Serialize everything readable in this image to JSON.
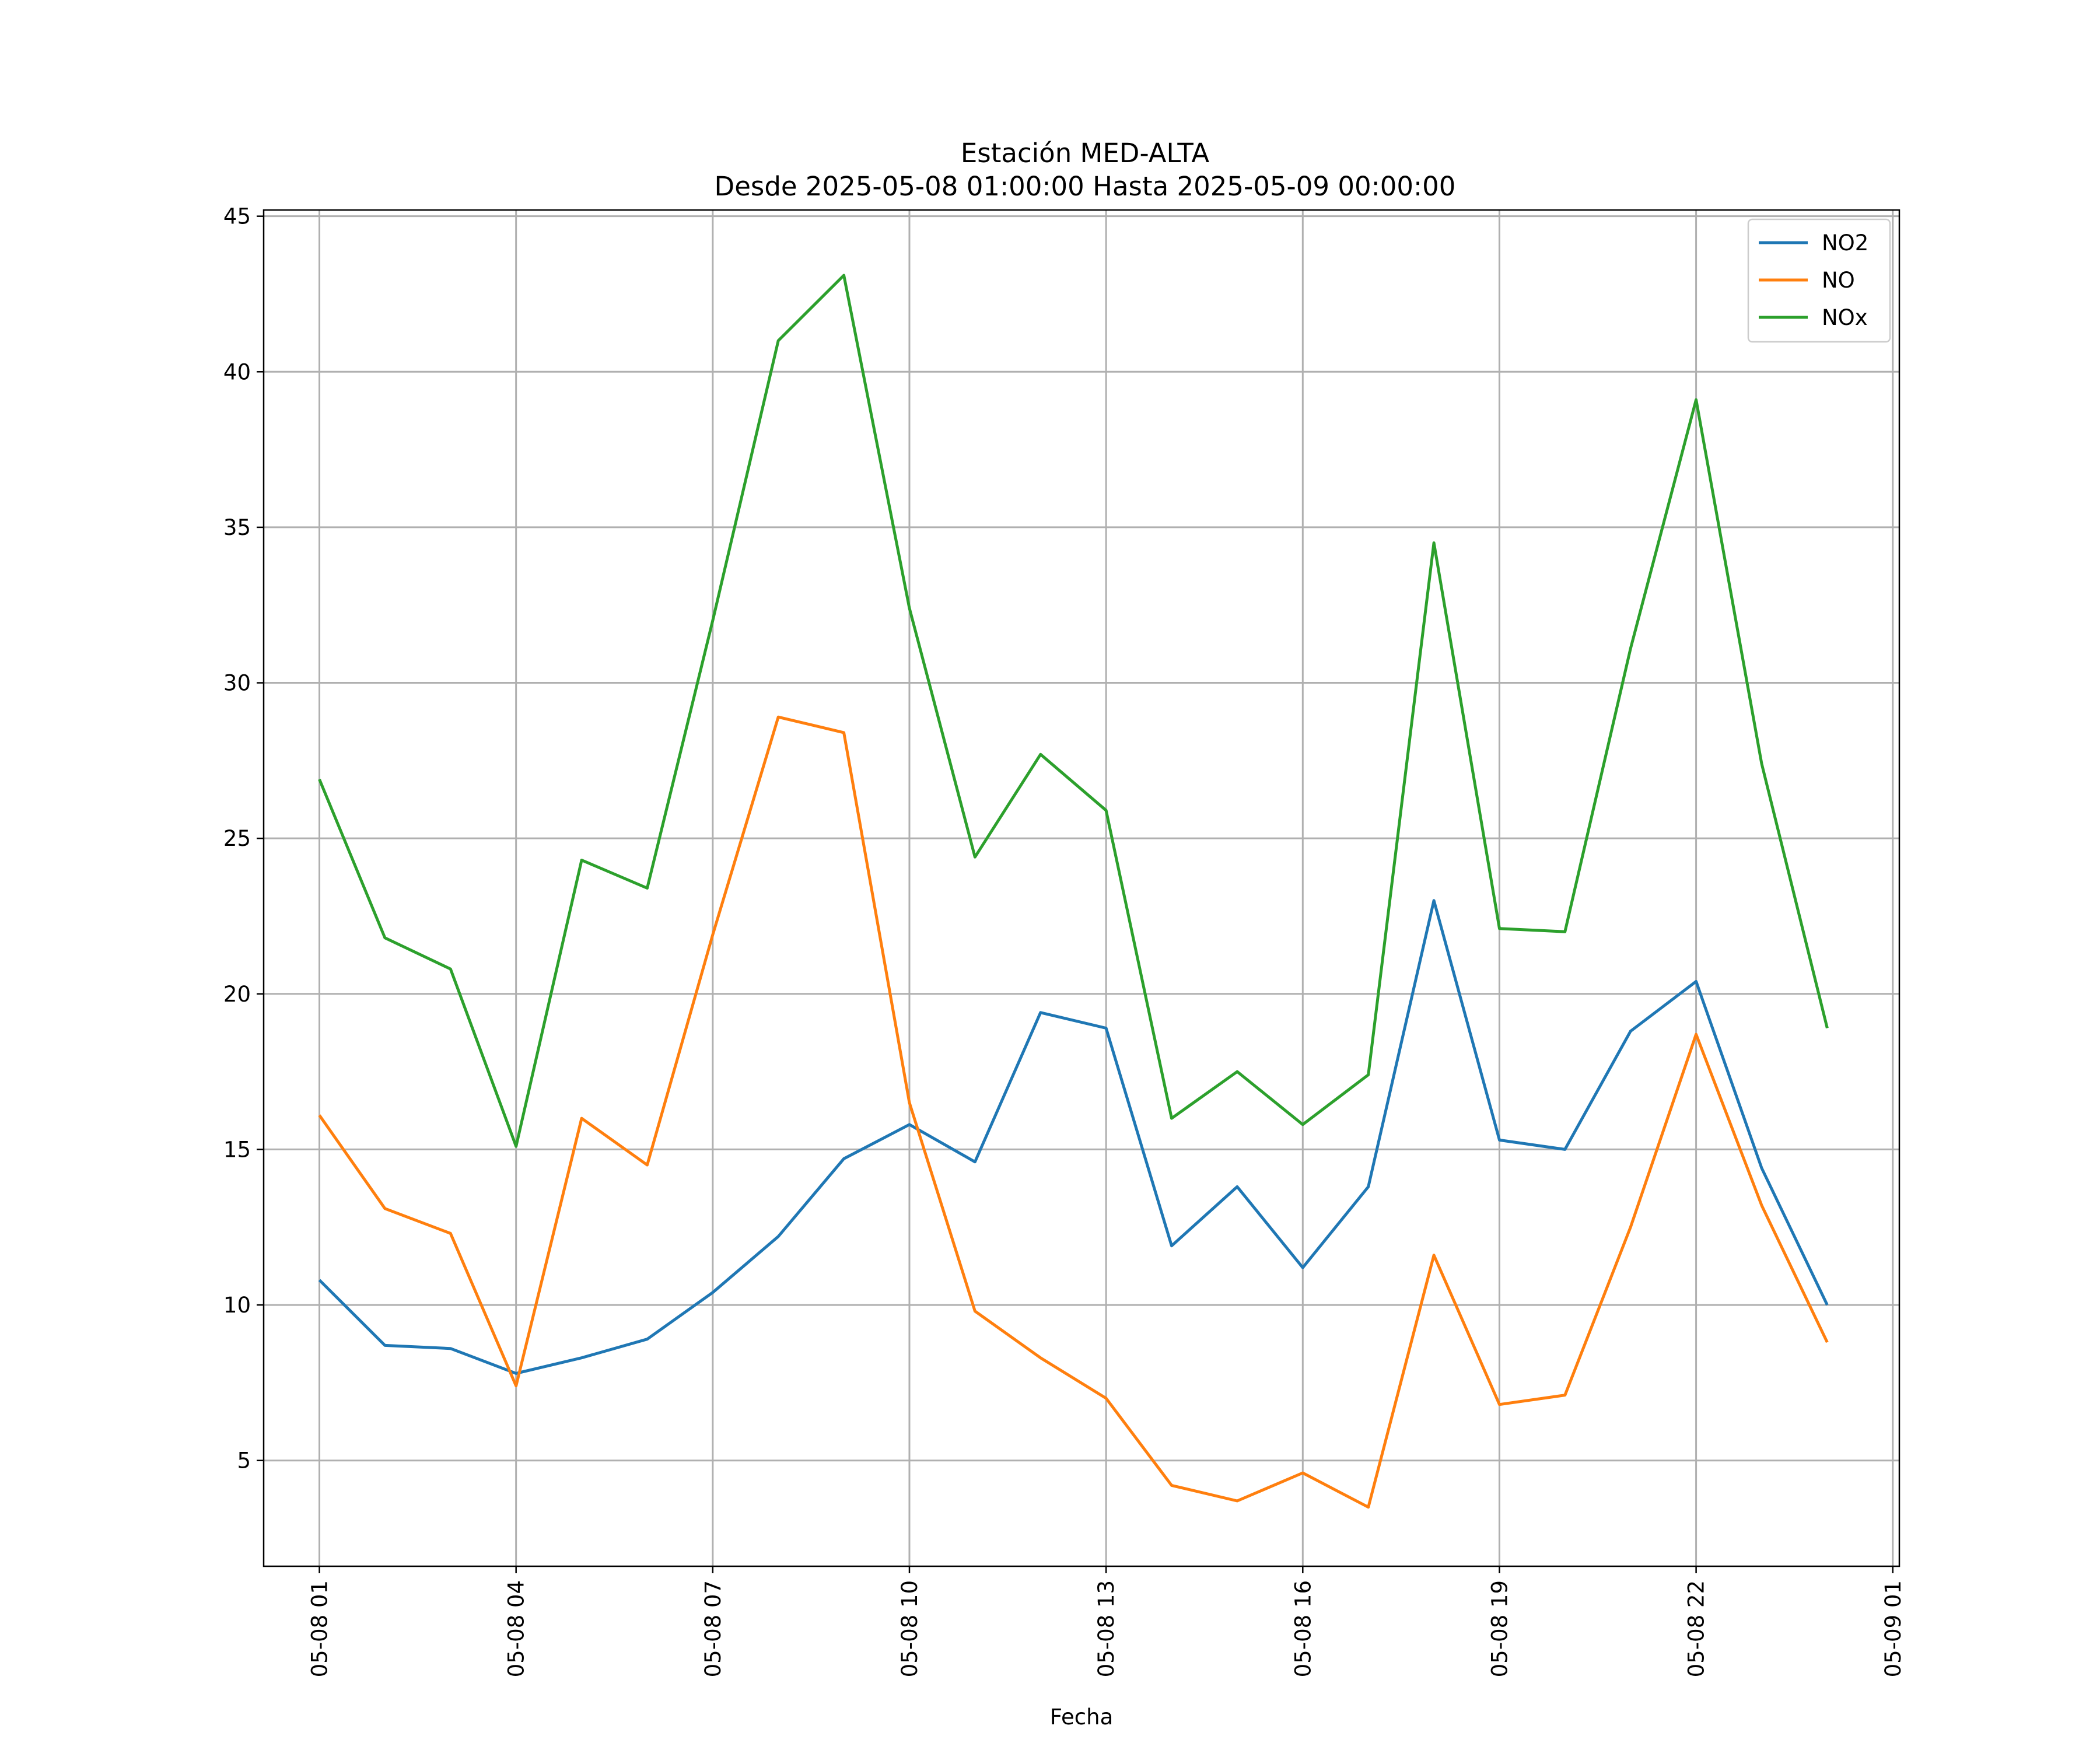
{
  "chart_data": {
    "type": "line",
    "title": "Estación MED-ALTA",
    "subtitle": "Desde 2025-05-08 01:00:00 Hasta 2025-05-09 00:00:00",
    "xlabel": "Fecha",
    "ylabel": "",
    "x": [
      "2025-05-08 01:00",
      "2025-05-08 02:00",
      "2025-05-08 03:00",
      "2025-05-08 04:00",
      "2025-05-08 05:00",
      "2025-05-08 06:00",
      "2025-05-08 07:00",
      "2025-05-08 08:00",
      "2025-05-08 09:00",
      "2025-05-08 10:00",
      "2025-05-08 11:00",
      "2025-05-08 12:00",
      "2025-05-08 13:00",
      "2025-05-08 14:00",
      "2025-05-08 15:00",
      "2025-05-08 16:00",
      "2025-05-08 17:00",
      "2025-05-08 18:00",
      "2025-05-08 19:00",
      "2025-05-08 20:00",
      "2025-05-08 21:00",
      "2025-05-08 22:00",
      "2025-05-08 23:00",
      "2025-05-09 00:00"
    ],
    "x_ticks": [
      {
        "x": "2025-05-08 01:00",
        "label": "05-08 01"
      },
      {
        "x": "2025-05-08 04:00",
        "label": "05-08 04"
      },
      {
        "x": "2025-05-08 07:00",
        "label": "05-08 07"
      },
      {
        "x": "2025-05-08 10:00",
        "label": "05-08 10"
      },
      {
        "x": "2025-05-08 13:00",
        "label": "05-08 13"
      },
      {
        "x": "2025-05-08 16:00",
        "label": "05-08 16"
      },
      {
        "x": "2025-05-08 19:00",
        "label": "05-08 19"
      },
      {
        "x": "2025-05-08 22:00",
        "label": "05-08 22"
      },
      {
        "x": "2025-05-09 01:00",
        "label": "05-09 01"
      }
    ],
    "xlim": [
      "2025-05-08 00:09",
      "2025-05-09 01:06"
    ],
    "y_ticks": [
      5,
      10,
      15,
      20,
      25,
      30,
      35,
      40,
      45
    ],
    "ylim": [
      1.6,
      45.2
    ],
    "grid": true,
    "legend_position": "top-right",
    "series": [
      {
        "name": "NO2",
        "color": "#1f77b4",
        "values": [
          10.8,
          8.7,
          8.6,
          7.8,
          8.3,
          8.9,
          10.4,
          12.2,
          14.7,
          15.8,
          14.6,
          19.4,
          18.9,
          11.9,
          13.8,
          11.2,
          13.8,
          23.0,
          15.3,
          15.0,
          18.8,
          20.4,
          14.4,
          10.0
        ]
      },
      {
        "name": "NO",
        "color": "#ff7f0e",
        "values": [
          16.1,
          13.1,
          12.3,
          7.4,
          16.0,
          14.5,
          21.9,
          28.9,
          28.4,
          16.5,
          9.8,
          8.3,
          7.0,
          4.2,
          3.7,
          4.6,
          3.5,
          11.6,
          6.8,
          7.1,
          12.5,
          18.7,
          13.2,
          8.8
        ]
      },
      {
        "name": "NOx",
        "color": "#2ca02c",
        "values": [
          26.9,
          21.8,
          20.8,
          15.1,
          24.3,
          23.4,
          32.0,
          41.0,
          43.1,
          32.4,
          24.4,
          27.7,
          25.9,
          16.0,
          17.5,
          15.8,
          17.4,
          34.5,
          22.1,
          22.0,
          31.1,
          39.1,
          27.4,
          18.9
        ]
      }
    ]
  }
}
